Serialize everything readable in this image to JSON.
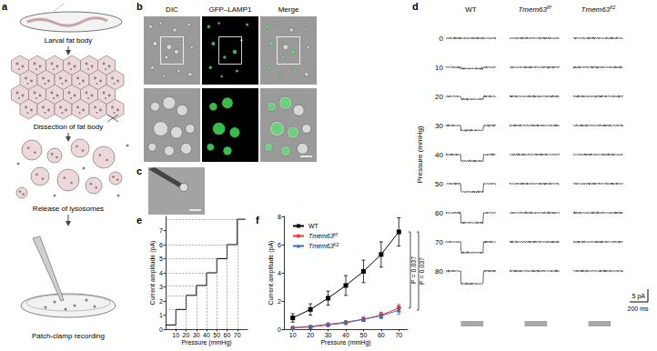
{
  "figure": {
    "a": {
      "label": "a",
      "steps": [
        "Larval fat body",
        "Dissection of fat body",
        "Release of lysosomes",
        "Patch-clamp recording"
      ]
    },
    "b": {
      "label": "b",
      "columns": [
        "DIC",
        "GFP–LAMP1",
        "Merge"
      ]
    },
    "c": {
      "label": "c"
    },
    "d": {
      "label": "d",
      "genotypes": [
        "WT",
        "Tmem63f/f",
        "Tmem63f/2"
      ],
      "y_label": "Pressure (mmHg)",
      "pressures": [
        0,
        10,
        20,
        30,
        40,
        50,
        60,
        70,
        80
      ],
      "amplitudes": [
        [
          0,
          0.5,
          1.1,
          1.9,
          2.5,
          3.2,
          3.9,
          4.2,
          5.0
        ],
        [
          0,
          0,
          0,
          0,
          0,
          0,
          0,
          0,
          0
        ],
        [
          0,
          0,
          0,
          0,
          0,
          0,
          0,
          0,
          0
        ]
      ],
      "scale_bar": {
        "current": {
          "value": 5,
          "label": "5 pA"
        },
        "time": {
          "value": 200,
          "label": "200 ms"
        }
      }
    }
  },
  "chart_data": [
    {
      "panel_label": "e",
      "type": "line",
      "line_style": "step",
      "x": [
        0,
        10,
        20,
        30,
        40,
        50,
        60,
        70,
        78
      ],
      "values": [
        0.3,
        1.4,
        2.4,
        3.1,
        4.0,
        5.0,
        6.0,
        7.8,
        7.8
      ],
      "color": "#000000",
      "x_label": "Pressure (mmHg)",
      "y_label": "Current amplitude (pA)",
      "xlim": [
        0,
        80
      ],
      "xticks": [
        10,
        20,
        30,
        40,
        50,
        60,
        70
      ],
      "ylim": [
        0,
        8
      ],
      "yticks": [
        0,
        1,
        2,
        3,
        4,
        5,
        6,
        7
      ],
      "grid": false
    },
    {
      "panel_label": "f",
      "type": "line",
      "x": [
        10,
        20,
        30,
        40,
        50,
        60,
        70
      ],
      "series": [
        {
          "name": "WT",
          "color": "#000000",
          "marker": "square",
          "values": [
            0.8,
            1.4,
            2.2,
            3.1,
            4.1,
            5.3,
            6.9
          ],
          "errors": [
            0.3,
            0.4,
            0.5,
            0.7,
            0.8,
            0.9,
            1.0
          ]
        },
        {
          "name": "Tmem63f/f",
          "color": "#e8372c",
          "marker": "circle",
          "values": [
            0.1,
            0.15,
            0.3,
            0.45,
            0.7,
            1.0,
            1.5
          ],
          "errors": [
            0.05,
            0.05,
            0.1,
            0.1,
            0.15,
            0.2,
            0.25
          ]
        },
        {
          "name": "Tmem63f/2",
          "color": "#3d6fb6",
          "marker": "triangle",
          "values": [
            0.1,
            0.2,
            0.35,
            0.5,
            0.7,
            0.95,
            1.35
          ],
          "errors": [
            0.05,
            0.05,
            0.1,
            0.1,
            0.15,
            0.2,
            0.3
          ]
        }
      ],
      "x_label": "Pressure (mmHg)",
      "y_label": "Current amplitude (pA)",
      "xlim": [
        5,
        75
      ],
      "xticks": [
        10,
        20,
        30,
        40,
        50,
        60,
        70
      ],
      "ylim": [
        0,
        8
      ],
      "yticks": [
        0,
        2,
        4,
        6,
        8
      ],
      "grid": false,
      "legend": "top-left",
      "annotations": [
        {
          "text": "P = 0.037",
          "between": [
            "WT",
            "Tmem63f/f"
          ]
        },
        {
          "text": "P = 0.037",
          "between": [
            "WT",
            "Tmem63f/2"
          ]
        }
      ]
    }
  ]
}
